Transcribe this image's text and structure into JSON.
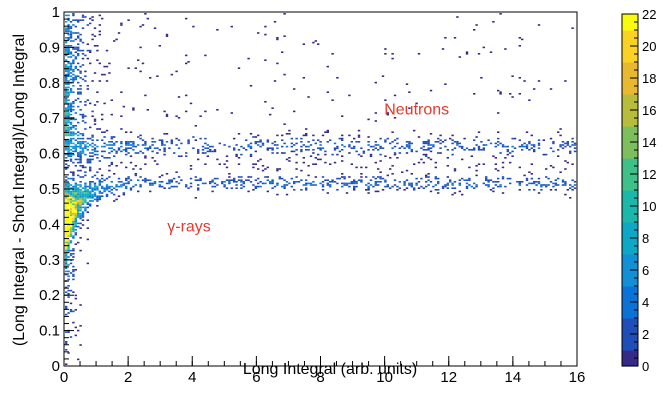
{
  "chart_data": {
    "type": "heatmap",
    "title": "",
    "xlabel": "Long Integral (arb. units)",
    "ylabel": "(Long Integral - Short Integral)/Long Integral",
    "xlim": [
      0,
      16
    ],
    "ylim": [
      0,
      1
    ],
    "x_ticks": [
      "0",
      "2",
      "4",
      "6",
      "8",
      "10",
      "12",
      "14",
      "16"
    ],
    "y_ticks": [
      "0",
      "0.1",
      "0.2",
      "0.3",
      "0.4",
      "0.5",
      "0.6",
      "0.7",
      "0.8",
      "0.9",
      "1"
    ],
    "colorbar": {
      "range": [
        0,
        22
      ],
      "ticks": [
        "0",
        "2",
        "4",
        "6",
        "8",
        "10",
        "12",
        "14",
        "16",
        "18",
        "20",
        "22"
      ],
      "palette": [
        "#352a87",
        "#1f4eb8",
        "#0b73d8",
        "#1390d5",
        "#0da7c7",
        "#1bb7ab",
        "#3fc088",
        "#7cbf5c",
        "#b7bd3b",
        "#e8b830",
        "#fbd224",
        "#f9fb0e"
      ]
    },
    "bands": [
      {
        "psd_center": 0.625,
        "psd_halfwidth": 0.022
      },
      {
        "psd_center": 0.518,
        "psd_halfwidth": 0.018
      }
    ],
    "annotations": [
      {
        "text": "Neutrons",
        "x": 11.0,
        "y": 0.71,
        "color": "#e23b2e"
      },
      {
        "text": "γ-rays",
        "x": 3.9,
        "y": 0.38,
        "color": "#e23b2e"
      }
    ],
    "grid": false,
    "legend": "none"
  }
}
